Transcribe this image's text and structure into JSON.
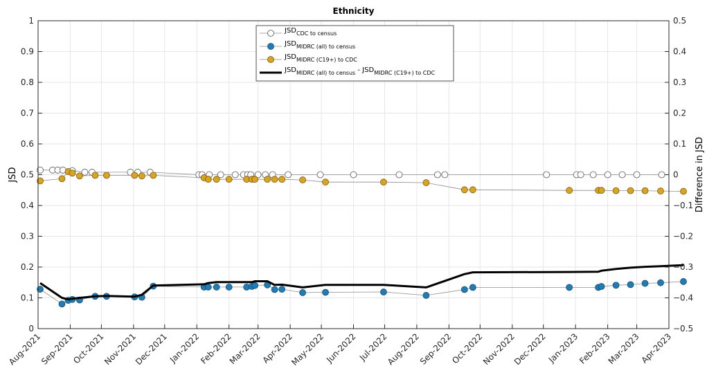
{
  "chart_data": {
    "type": "line",
    "title": "Ethnicity",
    "ylabel": "JSD",
    "ylabel_right": "Difference in JSD",
    "ylim": [
      0,
      1
    ],
    "ylim_right": [
      -0.5,
      0.5
    ],
    "yticks": [
      "0",
      "0.1",
      "0.2",
      "0.3",
      "0.4",
      "0.5",
      "0.6",
      "0.7",
      "0.8",
      "0.9",
      "1"
    ],
    "yticks_right": [
      "−0.5",
      "−0.4",
      "−0.3",
      "−0.2",
      "−0.1",
      "0",
      "0.1",
      "0.2",
      "0.3",
      "0.4",
      "0.5"
    ],
    "xlim": [
      "2021-08-01",
      "2023-04-01"
    ],
    "xticks": [
      {
        "date": "2021-08-01",
        "label": "Aug-2021"
      },
      {
        "date": "2021-09-01",
        "label": "Sep-2021"
      },
      {
        "date": "2021-10-01",
        "label": "Oct-2021"
      },
      {
        "date": "2021-11-01",
        "label": "Nov-2021"
      },
      {
        "date": "2021-12-01",
        "label": "Dec-2021"
      },
      {
        "date": "2022-01-01",
        "label": "Jan-2022"
      },
      {
        "date": "2022-02-01",
        "label": "Feb-2022"
      },
      {
        "date": "2022-03-01",
        "label": "Mar-2022"
      },
      {
        "date": "2022-04-01",
        "label": "Apr-2022"
      },
      {
        "date": "2022-05-01",
        "label": "May-2022"
      },
      {
        "date": "2022-06-01",
        "label": "Jun-2022"
      },
      {
        "date": "2022-07-01",
        "label": "Jul-2022"
      },
      {
        "date": "2022-08-01",
        "label": "Aug-2022"
      },
      {
        "date": "2022-09-01",
        "label": "Sep-2022"
      },
      {
        "date": "2022-10-01",
        "label": "Oct-2022"
      },
      {
        "date": "2022-11-01",
        "label": "Nov-2022"
      },
      {
        "date": "2022-12-01",
        "label": "Dec-2022"
      },
      {
        "date": "2023-01-01",
        "label": "Jan-2023"
      },
      {
        "date": "2023-02-01",
        "label": "Feb-2023"
      },
      {
        "date": "2023-03-01",
        "label": "Mar-2023"
      },
      {
        "date": "2023-04-01",
        "label": "Apr-2023"
      }
    ],
    "grid": true,
    "legend_position": "top-center",
    "series": [
      {
        "name_main": "JSD",
        "name_sub": "CDC to census",
        "name_suffix": "",
        "name_sub2": "",
        "axis": "left",
        "marker": "circle",
        "color": "#ffffff",
        "edge": "#555555",
        "x": [
          "2021-08-03",
          "2021-08-15",
          "2021-08-20",
          "2021-08-25",
          "2021-09-03",
          "2021-09-15",
          "2021-09-22",
          "2021-10-29",
          "2021-11-05",
          "2021-11-17",
          "2022-01-03",
          "2022-01-06",
          "2022-01-13",
          "2022-01-24",
          "2022-02-07",
          "2022-02-15",
          "2022-02-19",
          "2022-02-22",
          "2022-03-01",
          "2022-03-08",
          "2022-03-15",
          "2022-03-30",
          "2022-04-30",
          "2022-06-01",
          "2022-07-15",
          "2022-08-21",
          "2022-08-28",
          "2022-12-04",
          "2023-01-02",
          "2023-01-06",
          "2023-01-18",
          "2023-02-01",
          "2023-02-15",
          "2023-03-01",
          "2023-03-25"
        ],
        "values": [
          0.515,
          0.515,
          0.515,
          0.515,
          0.513,
          0.508,
          0.508,
          0.508,
          0.508,
          0.508,
          0.5,
          0.5,
          0.5,
          0.5,
          0.5,
          0.5,
          0.5,
          0.5,
          0.5,
          0.5,
          0.5,
          0.5,
          0.5,
          0.5,
          0.5,
          0.5,
          0.5,
          0.5,
          0.5,
          0.5,
          0.5,
          0.5,
          0.5,
          0.5,
          0.5
        ]
      },
      {
        "name_main": "JSD",
        "name_sub": "MIDRC (all) to census",
        "name_suffix": "",
        "name_sub2": "",
        "axis": "left",
        "marker": "circle",
        "color": "#1f7cb4",
        "edge": "#1b4a6e",
        "x": [
          "2021-08-03",
          "2021-08-24",
          "2021-08-30",
          "2021-09-03",
          "2021-09-10",
          "2021-09-25",
          "2021-10-06",
          "2021-11-02",
          "2021-11-09",
          "2021-11-20",
          "2022-01-08",
          "2022-01-12",
          "2022-01-20",
          "2022-02-01",
          "2022-02-18",
          "2022-02-23",
          "2022-02-26",
          "2022-03-10",
          "2022-03-17",
          "2022-03-24",
          "2022-04-13",
          "2022-05-05",
          "2022-06-30",
          "2022-08-10",
          "2022-09-16",
          "2022-09-24",
          "2022-12-26",
          "2023-01-23",
          "2023-01-26",
          "2023-02-09",
          "2023-02-23",
          "2023-03-09",
          "2023-03-24",
          "2023-04-15"
        ],
        "values": [
          0.128,
          0.08,
          0.092,
          0.095,
          0.093,
          0.105,
          0.105,
          0.103,
          0.102,
          0.138,
          0.135,
          0.135,
          0.135,
          0.135,
          0.135,
          0.137,
          0.14,
          0.142,
          0.127,
          0.128,
          0.117,
          0.118,
          0.119,
          0.108,
          0.127,
          0.134,
          0.134,
          0.134,
          0.137,
          0.141,
          0.143,
          0.147,
          0.149,
          0.153
        ]
      },
      {
        "name_main": "JSD",
        "name_sub": "MIDRC (C19+) to CDC",
        "name_suffix": "",
        "name_sub2": "",
        "axis": "left",
        "marker": "circle",
        "color": "#d9a520",
        "edge": "#7a5a10",
        "x": [
          "2021-08-03",
          "2021-08-24",
          "2021-08-30",
          "2021-09-03",
          "2021-09-10",
          "2021-09-25",
          "2021-10-06",
          "2021-11-02",
          "2021-11-09",
          "2021-11-20",
          "2022-01-08",
          "2022-01-12",
          "2022-01-20",
          "2022-02-01",
          "2022-02-18",
          "2022-02-23",
          "2022-02-26",
          "2022-03-10",
          "2022-03-17",
          "2022-03-24",
          "2022-04-13",
          "2022-05-05",
          "2022-06-30",
          "2022-08-10",
          "2022-09-16",
          "2022-09-24",
          "2022-12-26",
          "2023-01-23",
          "2023-01-26",
          "2023-02-09",
          "2023-02-23",
          "2023-03-09",
          "2023-03-24",
          "2023-04-15"
        ],
        "values": [
          0.48,
          0.487,
          0.51,
          0.505,
          0.496,
          0.498,
          0.498,
          0.498,
          0.496,
          0.498,
          0.49,
          0.485,
          0.485,
          0.485,
          0.485,
          0.485,
          0.485,
          0.485,
          0.485,
          0.485,
          0.483,
          0.476,
          0.476,
          0.474,
          0.451,
          0.451,
          0.449,
          0.449,
          0.449,
          0.448,
          0.448,
          0.448,
          0.447,
          0.446
        ]
      },
      {
        "name_main": "JSD",
        "name_sub": "MIDRC (all) to census",
        "name_suffix": " - JSD",
        "name_sub2": "MIDRC (C19+) to CDC",
        "axis": "right",
        "marker": "none",
        "color": "#000000",
        "edge": "#000000",
        "x": [
          "2021-08-03",
          "2021-08-24",
          "2021-08-30",
          "2021-09-03",
          "2021-09-10",
          "2021-09-25",
          "2021-10-06",
          "2021-11-02",
          "2021-11-09",
          "2021-11-20",
          "2022-01-08",
          "2022-01-12",
          "2022-01-20",
          "2022-02-01",
          "2022-02-18",
          "2022-02-23",
          "2022-02-26",
          "2022-03-10",
          "2022-03-17",
          "2022-03-24",
          "2022-04-13",
          "2022-05-05",
          "2022-06-30",
          "2022-08-10",
          "2022-09-16",
          "2022-09-24",
          "2022-12-26",
          "2023-01-23",
          "2023-01-26",
          "2023-02-09",
          "2023-02-23",
          "2023-03-09",
          "2023-03-24",
          "2023-04-15"
        ],
        "values": [
          -0.352,
          -0.4,
          -0.405,
          -0.403,
          -0.4,
          -0.395,
          -0.394,
          -0.396,
          -0.39,
          -0.36,
          -0.356,
          -0.352,
          -0.349,
          -0.349,
          -0.349,
          -0.349,
          -0.346,
          -0.346,
          -0.358,
          -0.357,
          -0.366,
          -0.358,
          -0.358,
          -0.366,
          -0.323,
          -0.317,
          -0.316,
          -0.315,
          -0.312,
          -0.306,
          -0.302,
          -0.299,
          -0.297,
          -0.294
        ]
      }
    ]
  }
}
